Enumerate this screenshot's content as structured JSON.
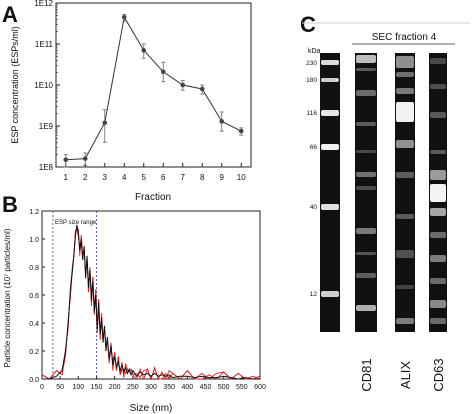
{
  "panels": {
    "a": {
      "letter": "A"
    },
    "b": {
      "letter": "B"
    },
    "c": {
      "letter": "C"
    }
  },
  "chart_data": [
    {
      "type": "line",
      "panel": "A",
      "xlabel": "Fraction",
      "ylabel": "ESP concentration (ESPs/ml)",
      "y_scale": "log",
      "ylim": [
        100000000.0,
        1000000000000.0
      ],
      "yticks": [
        100000000.0,
        1000000000.0,
        10000000000.0,
        100000000000.0,
        1000000000000.0
      ],
      "ytick_labels": [
        "1E8",
        "1E9",
        "1E10",
        "1E11",
        "1E12"
      ],
      "xlim": [
        0.5,
        10.5
      ],
      "xticks": [
        1,
        2,
        3,
        4,
        5,
        6,
        7,
        8,
        9,
        10
      ],
      "x": [
        1,
        2,
        3,
        4,
        5,
        6,
        7,
        8,
        9,
        10
      ],
      "y": [
        150000000.0,
        160000000.0,
        1200000000.0,
        450000000000.0,
        70000000000.0,
        21000000000.0,
        10000000000.0,
        8000000000.0,
        1300000000.0,
        750000000.0
      ],
      "err_low": [
        100000000.0,
        110000000.0,
        400000000.0,
        360000000000.0,
        45000000000.0,
        12000000000.0,
        7500000000.0,
        6000000000.0,
        750000000.0,
        600000000.0
      ],
      "err_high": [
        200000000.0,
        220000000.0,
        2500000000.0,
        520000000000.0,
        100000000000.0,
        36000000000.0,
        13000000000.0,
        10000000000.0,
        2200000000.0,
        900000000.0
      ],
      "grid": false
    },
    {
      "type": "line",
      "panel": "B",
      "xlabel": "Size (nm)",
      "ylabel": "Particle concentration (10⁷ particles/ml)",
      "xlim": [
        0,
        600
      ],
      "xticks": [
        0,
        50,
        100,
        150,
        200,
        250,
        300,
        350,
        400,
        450,
        500,
        550,
        600
      ],
      "ylim": [
        0,
        1.2
      ],
      "yticks": [
        0.0,
        0.2,
        0.4,
        0.6,
        0.8,
        1.0,
        1.2
      ],
      "ytick_labels": [
        "0.0",
        "0.2",
        "0.4",
        "0.6",
        "0.8",
        "1.0",
        "1.2"
      ],
      "annotation": "ESP size range",
      "reference_lines_x": [
        30,
        150
      ],
      "x": [
        0,
        20,
        40,
        55,
        65,
        72,
        78,
        84,
        88,
        92,
        96,
        100,
        104,
        108,
        112,
        116,
        120,
        124,
        128,
        132,
        136,
        140,
        144,
        148,
        152,
        156,
        160,
        164,
        168,
        172,
        176,
        180,
        185,
        190,
        195,
        200,
        205,
        210,
        215,
        220,
        225,
        230,
        235,
        240,
        245,
        250,
        260,
        270,
        280,
        290,
        300,
        310,
        320,
        330,
        340,
        350,
        360,
        380,
        400,
        420,
        440,
        460,
        480,
        500,
        520,
        540,
        560,
        580,
        600
      ],
      "y": [
        0.0,
        0.0,
        0.02,
        0.06,
        0.2,
        0.4,
        0.62,
        0.78,
        0.9,
        1.02,
        1.1,
        1.05,
        0.92,
        1.0,
        0.85,
        0.95,
        0.72,
        0.88,
        0.65,
        0.78,
        0.56,
        0.7,
        0.48,
        0.6,
        0.36,
        0.55,
        0.32,
        0.44,
        0.26,
        0.38,
        0.2,
        0.3,
        0.14,
        0.24,
        0.1,
        0.16,
        0.08,
        0.12,
        0.06,
        0.1,
        0.05,
        0.08,
        0.04,
        0.07,
        0.03,
        0.06,
        0.02,
        0.05,
        0.03,
        0.04,
        0.02,
        0.04,
        0.02,
        0.03,
        0.02,
        0.03,
        0.01,
        0.02,
        0.02,
        0.01,
        0.02,
        0.01,
        0.01,
        0.02,
        0.01,
        0.0,
        0.01,
        0.0,
        0.0
      ],
      "series_colors": {
        "mean": "#111111",
        "error": "#dd2222"
      },
      "grid": false
    }
  ],
  "blot": {
    "title": "SEC fraction 4",
    "unit_label": "kDa",
    "markers": [
      "230",
      "180",
      "116",
      "66",
      "40",
      "12"
    ],
    "marker_kda": [
      230,
      180,
      116,
      66,
      40,
      12
    ],
    "lanes": [
      {
        "label": "CD81"
      },
      {
        "label": "ALIX"
      },
      {
        "label": "CD63"
      }
    ]
  }
}
